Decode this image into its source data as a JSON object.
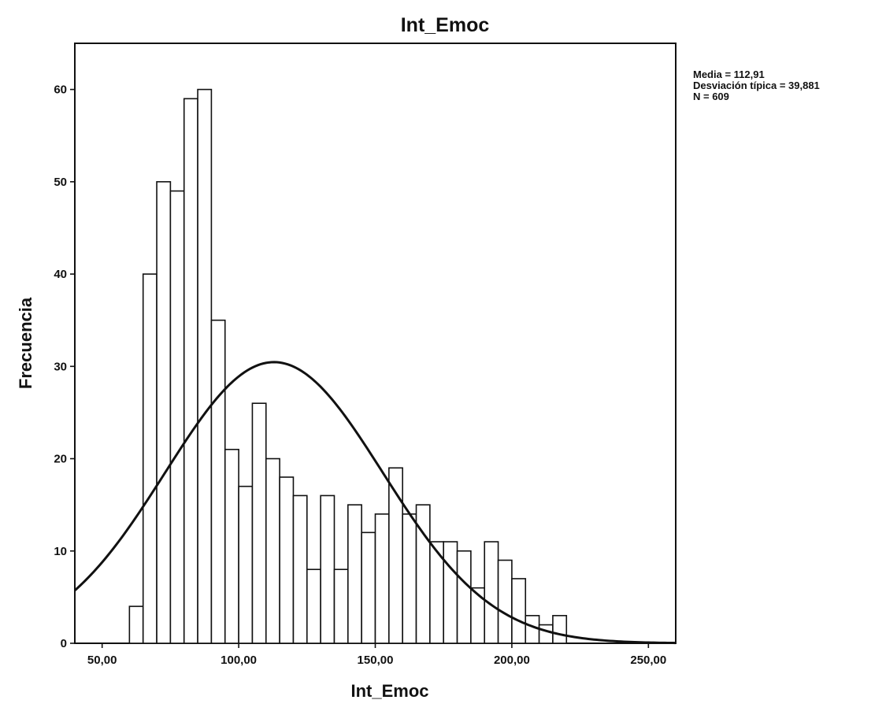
{
  "chart_data": {
    "type": "bar",
    "subtype": "histogram",
    "title": "Int_Emoc",
    "xlabel": "Int_Emoc",
    "ylabel": "Frecuencia",
    "xlim": [
      40,
      260
    ],
    "ylim": [
      0,
      65
    ],
    "x_ticks": [
      "50,00",
      "100,00",
      "150,00",
      "200,00",
      "250,00"
    ],
    "x_tick_values": [
      50,
      100,
      150,
      200,
      250
    ],
    "y_ticks": [
      "0",
      "10",
      "20",
      "30",
      "40",
      "50",
      "60"
    ],
    "y_tick_values": [
      0,
      10,
      20,
      30,
      40,
      50,
      60
    ],
    "bin_width": 5,
    "bins": [
      {
        "start": 60,
        "count": 4
      },
      {
        "start": 65,
        "count": 40
      },
      {
        "start": 70,
        "count": 50
      },
      {
        "start": 75,
        "count": 49
      },
      {
        "start": 80,
        "count": 59
      },
      {
        "start": 85,
        "count": 60
      },
      {
        "start": 90,
        "count": 35
      },
      {
        "start": 95,
        "count": 21
      },
      {
        "start": 100,
        "count": 17
      },
      {
        "start": 105,
        "count": 26
      },
      {
        "start": 110,
        "count": 20
      },
      {
        "start": 115,
        "count": 18
      },
      {
        "start": 120,
        "count": 16
      },
      {
        "start": 125,
        "count": 8
      },
      {
        "start": 130,
        "count": 16
      },
      {
        "start": 135,
        "count": 8
      },
      {
        "start": 140,
        "count": 15
      },
      {
        "start": 145,
        "count": 12
      },
      {
        "start": 150,
        "count": 14
      },
      {
        "start": 155,
        "count": 19
      },
      {
        "start": 160,
        "count": 14
      },
      {
        "start": 165,
        "count": 15
      },
      {
        "start": 170,
        "count": 11
      },
      {
        "start": 175,
        "count": 11
      },
      {
        "start": 180,
        "count": 10
      },
      {
        "start": 185,
        "count": 6
      },
      {
        "start": 190,
        "count": 11
      },
      {
        "start": 195,
        "count": 9
      },
      {
        "start": 200,
        "count": 7
      },
      {
        "start": 205,
        "count": 3
      },
      {
        "start": 210,
        "count": 2
      },
      {
        "start": 215,
        "count": 3
      }
    ],
    "normal_curve": {
      "mean": 112.91,
      "sd": 39.881,
      "n": 609
    },
    "grid": false,
    "stats_text": [
      "Media = 112,91",
      "Desviación típica = 39,881",
      "N = 609"
    ]
  }
}
